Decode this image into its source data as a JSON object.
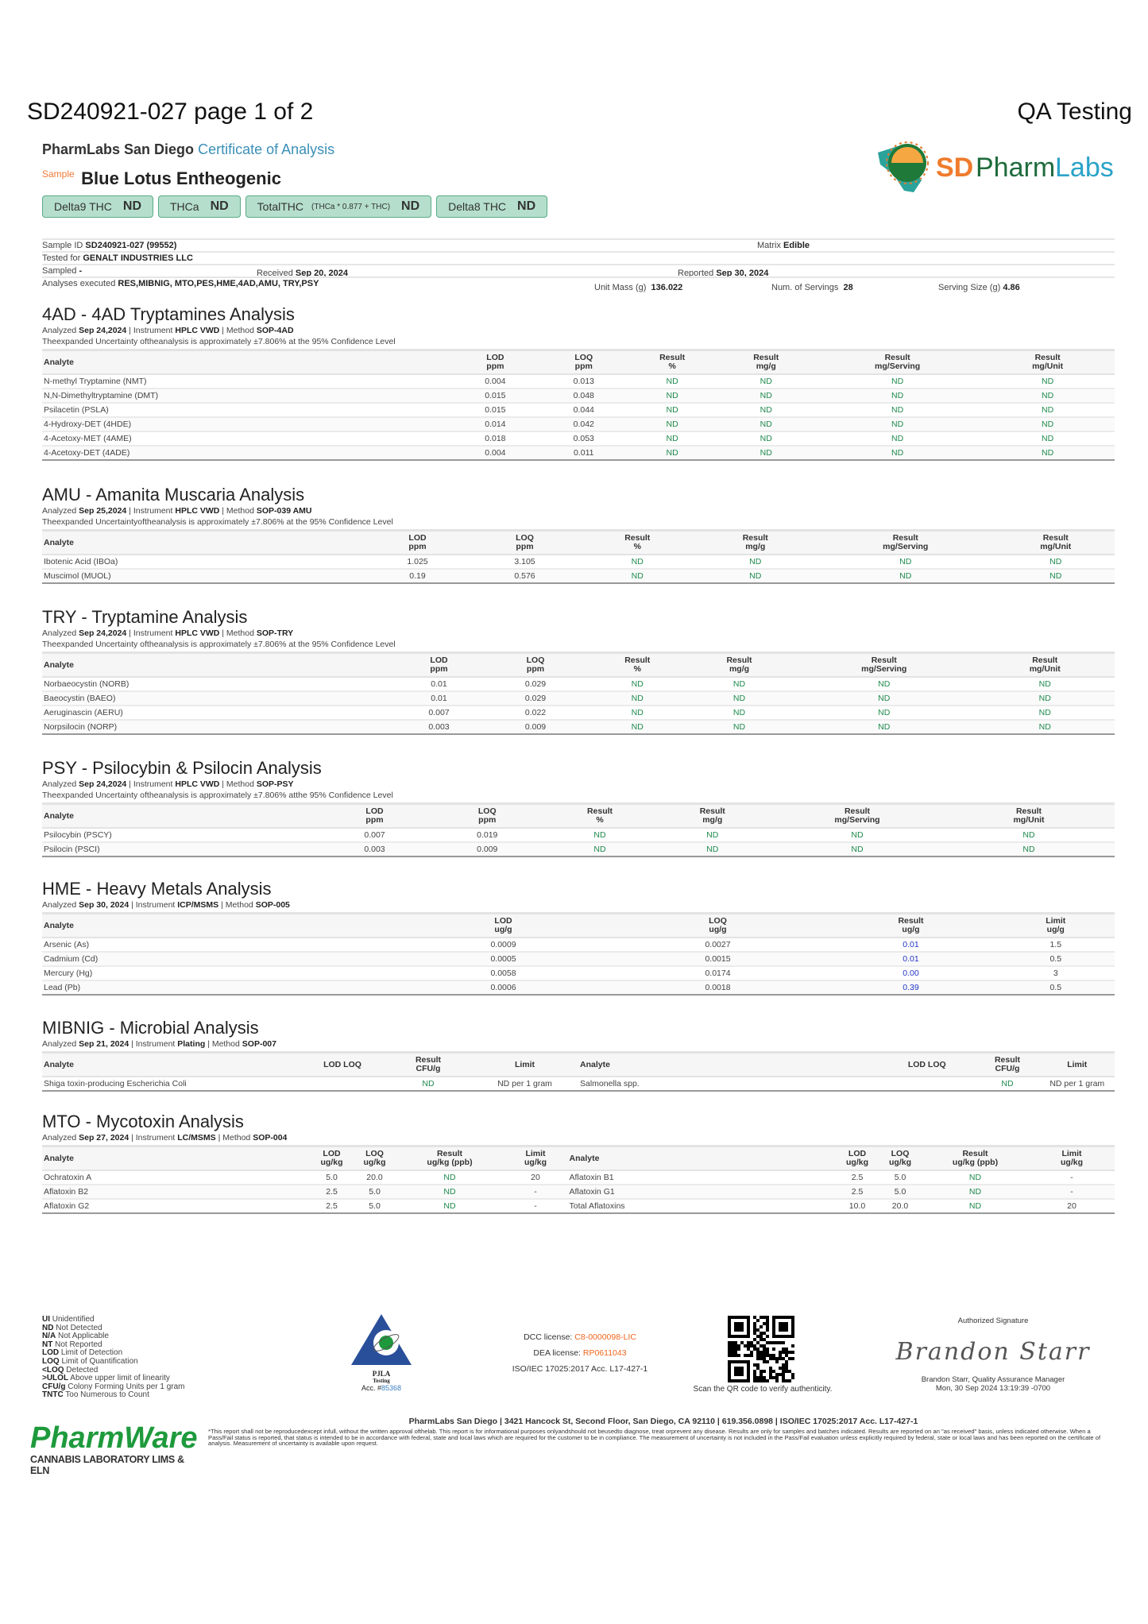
{
  "header": {
    "doc_title": "SD240921-027 page 1 of 2",
    "qa_title": "QA Testing",
    "lab_name": "PharmLabs San Diego",
    "coa_label": "Certificate of Analysis",
    "sample_label": "Sample",
    "sample_name": "Blue Lotus Entheogenic",
    "logo_text": "SDPharmLabs",
    "badges": [
      {
        "label": "Delta9 THC",
        "formula": "",
        "value": "ND"
      },
      {
        "label": "THCa",
        "formula": "",
        "value": "ND"
      },
      {
        "label": "TotalTHC",
        "formula": "(THCa * 0.877 + THC)",
        "value": "ND"
      },
      {
        "label": "Delta8 THC",
        "formula": "",
        "value": "ND"
      }
    ]
  },
  "info": {
    "sample_id_label": "Sample ID",
    "sample_id": "SD240921-027 (99552)",
    "matrix_label": "Matrix",
    "matrix": "Edible",
    "tested_for_label": "Tested for",
    "tested_for": "GENALT INDUSTRIES LLC",
    "sampled_label": "Sampled",
    "sampled": "-",
    "received_label": "Received",
    "received": "Sep 20, 2024",
    "reported_label": "Reported",
    "reported": "Sep 30, 2024",
    "analyses_label": "Analyses executed",
    "analyses": "RES,MIBNIG, MTO,PES,HME,4AD,AMU, TRY,PSY",
    "unit_mass_label": "Unit Mass (g)",
    "unit_mass": "136.022",
    "servings_label": "Num. of Servings",
    "servings": "28",
    "serving_size_label": "Serving Size (g)",
    "serving_size": "4.86"
  },
  "sections": [
    {
      "id": "4ad",
      "title": "4AD - 4AD Tryptamines Analysis",
      "analyzed": "Sep 24,2024",
      "instrument": "HPLC VWD",
      "method": "SOP-4AD",
      "uncertainty": "Theexpanded Uncertainty oftheanalysis is approximately ±7.806% at the 95% Confidence Level",
      "headers": [
        "Analyte",
        "LOD\nppm",
        "LOQ\nppm",
        "Result\n%",
        "Result\nmg/g",
        "Result\nmg/Serving",
        "Result\nmg/Unit"
      ],
      "rows": [
        [
          "N-methyl Tryptamine (NMT)",
          "0.004",
          "0.013",
          "ND",
          "ND",
          "ND",
          "ND"
        ],
        [
          "N,N-Dimethyltryptamine (DMT)",
          "0.015",
          "0.048",
          "ND",
          "ND",
          "ND",
          "ND"
        ],
        [
          "Psilacetin (PSLA)",
          "0.015",
          "0.044",
          "ND",
          "ND",
          "ND",
          "ND"
        ],
        [
          "4-Hydroxy-DET (4HDE)",
          "0.014",
          "0.042",
          "ND",
          "ND",
          "ND",
          "ND"
        ],
        [
          "4-Acetoxy-MET (4AME)",
          "0.018",
          "0.053",
          "ND",
          "ND",
          "ND",
          "ND"
        ],
        [
          "4-Acetoxy-DET (4ADE)",
          "0.004",
          "0.011",
          "ND",
          "ND",
          "ND",
          "ND"
        ]
      ]
    },
    {
      "id": "amu",
      "title": "AMU - Amanita Muscaria Analysis",
      "analyzed": "Sep 25,2024",
      "instrument": "HPLC VWD",
      "method": "SOP-039 AMU",
      "uncertainty": "Theexpanded Uncertaintyoftheanalysis is approximately ±7.806% at the 95% Confidence Level",
      "headers": [
        "Analyte",
        "LOD\nppm",
        "LOQ\nppm",
        "Result\n%",
        "Result\nmg/g",
        "Result\nmg/Serving",
        "Result\nmg/Unit"
      ],
      "rows": [
        [
          "Ibotenic Acid (IBOa)",
          "1.025",
          "3.105",
          "ND",
          "ND",
          "ND",
          "ND"
        ],
        [
          "Muscimol (MUOL)",
          "0.19",
          "0.576",
          "ND",
          "ND",
          "ND",
          "ND"
        ]
      ]
    },
    {
      "id": "try",
      "title": "TRY - Tryptamine Analysis",
      "analyzed": "Sep 24,2024",
      "instrument": "HPLC VWD",
      "method": "SOP-TRY",
      "uncertainty": "Theexpanded Uncertainty oftheanalysis is approximately ±7.806% at the 95% Confidence Level",
      "headers": [
        "Analyte",
        "LOD\nppm",
        "LOQ\nppm",
        "Result\n%",
        "Result\nmg/g",
        "Result\nmg/Serving",
        "Result\nmg/Unit"
      ],
      "rows": [
        [
          "Norbaeocystin (NORB)",
          "0.01",
          "0.029",
          "ND",
          "ND",
          "ND",
          "ND"
        ],
        [
          "Baeocystin (BAEO)",
          "0.01",
          "0.029",
          "ND",
          "ND",
          "ND",
          "ND"
        ],
        [
          "Aeruginascin (AERU)",
          "0.007",
          "0.022",
          "ND",
          "ND",
          "ND",
          "ND"
        ],
        [
          "Norpsilocin (NORP)",
          "0.003",
          "0.009",
          "ND",
          "ND",
          "ND",
          "ND"
        ]
      ]
    },
    {
      "id": "psy",
      "title": "PSY - Psilocybin & Psilocin Analysis",
      "analyzed": "Sep 24,2024",
      "instrument": "HPLC VWD",
      "method": "SOP-PSY",
      "uncertainty": "Theexpanded Uncertainty oftheanalysis is approximately ±7.806% atthe 95% Confidence Level",
      "headers": [
        "Analyte",
        "LOD\nppm",
        "LOQ\nppm",
        "Result\n%",
        "Result\nmg/g",
        "Result\nmg/Serving",
        "Result\nmg/Unit"
      ],
      "rows": [
        [
          "Psilocybin (PSCY)",
          "0.007",
          "0.019",
          "ND",
          "ND",
          "ND",
          "ND"
        ],
        [
          "Psilocin (PSCI)",
          "0.003",
          "0.009",
          "ND",
          "ND",
          "ND",
          "ND"
        ]
      ]
    },
    {
      "id": "hme",
      "title": "HME - Heavy Metals Analysis",
      "analyzed": "Sep 30, 2024",
      "instrument": "ICP/MSMS",
      "method": "SOP-005",
      "uncertainty": "",
      "headers": [
        "Analyte",
        "LOD\nug/g",
        "LOQ\nug/g",
        "Result\nug/g",
        "Limit\nug/g"
      ],
      "rows": [
        [
          "Arsenic (As)",
          "0.0009",
          "0.0027",
          "0.01",
          "1.5"
        ],
        [
          "Cadmium (Cd)",
          "0.0005",
          "0.0015",
          "0.01",
          "0.5"
        ],
        [
          "Mercury (Hg)",
          "0.0058",
          "0.0174",
          "0.00",
          "3"
        ],
        [
          "Lead (Pb)",
          "0.0006",
          "0.0018",
          "0.39",
          "0.5"
        ]
      ]
    },
    {
      "id": "mibnig",
      "title": "MIBNIG - Microbial Analysis",
      "analyzed": "Sep 21, 2024",
      "instrument": "Plating",
      "method": "SOP-007",
      "uncertainty": "",
      "headers": [
        "Analyte",
        "LOD LOQ",
        "Result\nCFU/g",
        "Limit",
        "Analyte",
        "LOD LOQ",
        "Result\nCFU/g",
        "Limit"
      ],
      "rows": [
        [
          "Shiga toxin-producing Escherichia Coli",
          "",
          "ND",
          "ND per 1 gram",
          "Salmonella spp.",
          "",
          "ND",
          "ND per 1 gram"
        ]
      ]
    },
    {
      "id": "mto",
      "title": "MTO - Mycotoxin Analysis",
      "analyzed": "Sep 27, 2024",
      "instrument": "LC/MSMS",
      "method": "SOP-004",
      "uncertainty": "",
      "headers": [
        "Analyte",
        "LOD\nug/kg",
        "LOQ\nug/kg",
        "Result\nug/kg (ppb)",
        "Limit\nug/kg",
        "Analyte",
        "LOD\nug/kg",
        "LOQ\nug/kg",
        "Result\nug/kg (ppb)",
        "Limit\nug/kg"
      ],
      "rows": [
        [
          "Ochratoxin A",
          "5.0",
          "20.0",
          "ND",
          "20",
          "Aflatoxin B1",
          "2.5",
          "5.0",
          "ND",
          "-"
        ],
        [
          "Aflatoxin B2",
          "2.5",
          "5.0",
          "ND",
          "-",
          "Aflatoxin G1",
          "2.5",
          "5.0",
          "ND",
          "-"
        ],
        [
          "Aflatoxin G2",
          "2.5",
          "5.0",
          "ND",
          "-",
          "Total Aflatoxins",
          "10.0",
          "20.0",
          "ND",
          "20"
        ]
      ]
    }
  ],
  "labels": {
    "analyzed": "Analyzed",
    "instrument": "Instrument",
    "method": "Method"
  },
  "footer": {
    "legend": [
      {
        "abbr": "UI",
        "text": "Unidentified"
      },
      {
        "abbr": "ND",
        "text": "Not Detected"
      },
      {
        "abbr": "N/A",
        "text": "Not Applicable"
      },
      {
        "abbr": "NT",
        "text": "Not Reported"
      },
      {
        "abbr": "LOD",
        "text": "Limit of Detection"
      },
      {
        "abbr": "LOQ",
        "text": "Limit of Quantification"
      },
      {
        "abbr": "<LOQ",
        "text": "Detected"
      },
      {
        "abbr": ">ULOL",
        "text": "Above upper limit of linearity"
      },
      {
        "abbr": "CFU/g",
        "text": "Colony Forming Units per 1 gram"
      },
      {
        "abbr": "TNTC",
        "text": "Too Numerous to Count"
      }
    ],
    "pjla": {
      "name": "PJLA",
      "sub": "Testing",
      "acc_label": "Acc. #",
      "acc": "85368"
    },
    "dcc_label": "DCC license:",
    "dcc": "C8-0000098-LIC",
    "dea_label": "DEA license:",
    "dea": "RP0611043",
    "iso": "ISO/IEC 17025:2017 Acc. L17-427-1",
    "qr_caption": "Scan the QR code to verify authenticity.",
    "sig_label": "Authorized Signature",
    "signature": "Brandon Starr",
    "signer": "Brandon Starr, Quality Assurance Manager",
    "signed_at": "Mon, 30 Sep 2024 13:19:39 -0700",
    "address": "PharmLabs San Diego | 3421 Hancock St, Second Floor, San Diego, CA 92110 | 619.356.0898 | ISO/IEC 17025:2017 Acc. L17-427-1",
    "disclaimer": "*This report shall not be reproducedexcept infull, without the written approval ofthelab. This report is for informational purposes onlyandshould not beusedto diagnose, treat orprevent any disease. Results are only for samples and batches indicated. Results are reported on an \"as received\" basis, unless indicated otherwise. When a Pass/Fail status is reported, that status is intended to be in accordance with federal, state and local laws which are required for the customer to be in compliance. The measurement of uncertainty is not included in the Pass/Fail evaluation unless explicitly required by federal, state or local laws and has been reported on the certificate of analysis. Measurement of uncertainty is available upon request.",
    "pharmware_name": "PharmWare",
    "pharmware_sub": "CANNABIS LABORATORY LIMS & ELN"
  },
  "colors": {
    "nd_green": "#1e8a4c",
    "result_blue": "#2236c4",
    "license_orange": "#f0661e",
    "badge_bg": "#b5dfcc",
    "coa_blue": "#3a8fb7"
  }
}
